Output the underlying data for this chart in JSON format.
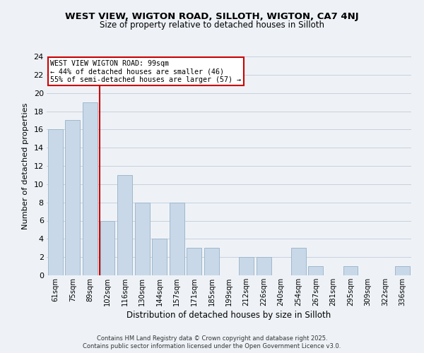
{
  "title": "WEST VIEW, WIGTON ROAD, SILLOTH, WIGTON, CA7 4NJ",
  "subtitle": "Size of property relative to detached houses in Silloth",
  "xlabel": "Distribution of detached houses by size in Silloth",
  "ylabel": "Number of detached properties",
  "bar_labels": [
    "61sqm",
    "75sqm",
    "89sqm",
    "102sqm",
    "116sqm",
    "130sqm",
    "144sqm",
    "157sqm",
    "171sqm",
    "185sqm",
    "199sqm",
    "212sqm",
    "226sqm",
    "240sqm",
    "254sqm",
    "267sqm",
    "281sqm",
    "295sqm",
    "309sqm",
    "322sqm",
    "336sqm"
  ],
  "bar_values": [
    16,
    17,
    19,
    6,
    11,
    8,
    4,
    8,
    3,
    3,
    0,
    2,
    2,
    0,
    3,
    1,
    0,
    1,
    0,
    0,
    1
  ],
  "bar_color": "#c8d8e8",
  "bar_edge_color": "#a0b8cc",
  "ylim": [
    0,
    24
  ],
  "yticks": [
    0,
    2,
    4,
    6,
    8,
    10,
    12,
    14,
    16,
    18,
    20,
    22,
    24
  ],
  "annotation_title": "WEST VIEW WIGTON ROAD: 99sqm",
  "annotation_line1": "← 44% of detached houses are smaller (46)",
  "annotation_line2": "55% of semi-detached houses are larger (57) →",
  "annotation_box_color": "#ffffff",
  "annotation_border_color": "#cc0000",
  "redline_color": "#cc0000",
  "background_color": "#eef2f7",
  "grid_color": "#c8d0dc",
  "footer1": "Contains HM Land Registry data © Crown copyright and database right 2025.",
  "footer2": "Contains public sector information licensed under the Open Government Licence v3.0."
}
